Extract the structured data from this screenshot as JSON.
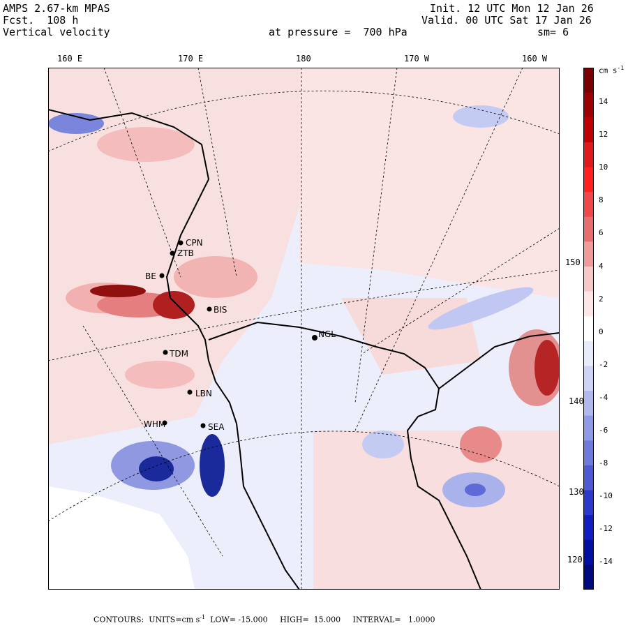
{
  "header": {
    "model": "AMPS 2.67-km MPAS",
    "fcst": "Fcst.  108 h",
    "variable": "Vertical velocity",
    "init": "Init. 12 UTC Mon 12 Jan 26",
    "valid": "Valid. 00 UTC Sat 17 Jan 26",
    "pressure": "at pressure =  700 hPa",
    "smoothing": "sm= 6"
  },
  "axes": {
    "lon_labels": [
      "160 E",
      "170 E",
      "180",
      "170 W",
      "160 W"
    ],
    "lat_labels": [
      "150 W",
      "140 W",
      "130 W",
      "120 W"
    ]
  },
  "colorbar": {
    "unit": "cm s",
    "unit_exp": "-1",
    "labels": [
      "14",
      "12",
      "10",
      "8",
      "6",
      "4",
      "2",
      "0",
      "-2",
      "-4",
      "-6",
      "-8",
      "-10",
      "-12",
      "-14"
    ],
    "colors": [
      "#7a0000",
      "#9c0000",
      "#bd0000",
      "#de1a1a",
      "#ff2020",
      "#f04848",
      "#e86d6d",
      "#f09a9a",
      "#f8c8c8",
      "#ffe6e6",
      "#ffffff",
      "#e8ecfa",
      "#cdd3f4",
      "#b0b8ee",
      "#8f9ae6",
      "#6f7bdc",
      "#4d5ad4",
      "#2b3acc",
      "#1020c0",
      "#0010a0",
      "#000a80"
    ]
  },
  "stations": [
    "CPN",
    "ZTB",
    "BE",
    "BIS",
    "NGL",
    "TDM",
    "LBN",
    "WHM",
    "SEA"
  ],
  "footer": {
    "contours_label": "CONTOURS:",
    "units": "UNITS=cm s",
    "units_exp": "-1",
    "low": "LOW= -15.000",
    "high": "HIGH=  15.000",
    "interval": "INTERVAL=   1.0000"
  },
  "map_colors": {
    "background": "#eceffb",
    "land_line": "#000000",
    "pos_light": "#f7d4d4",
    "pos_mid": "#ec9a9a",
    "pos_dark": "#a01010",
    "neg_light": "#c8cff2",
    "neg_mid": "#7b86dc",
    "neg_dark": "#10188a"
  }
}
